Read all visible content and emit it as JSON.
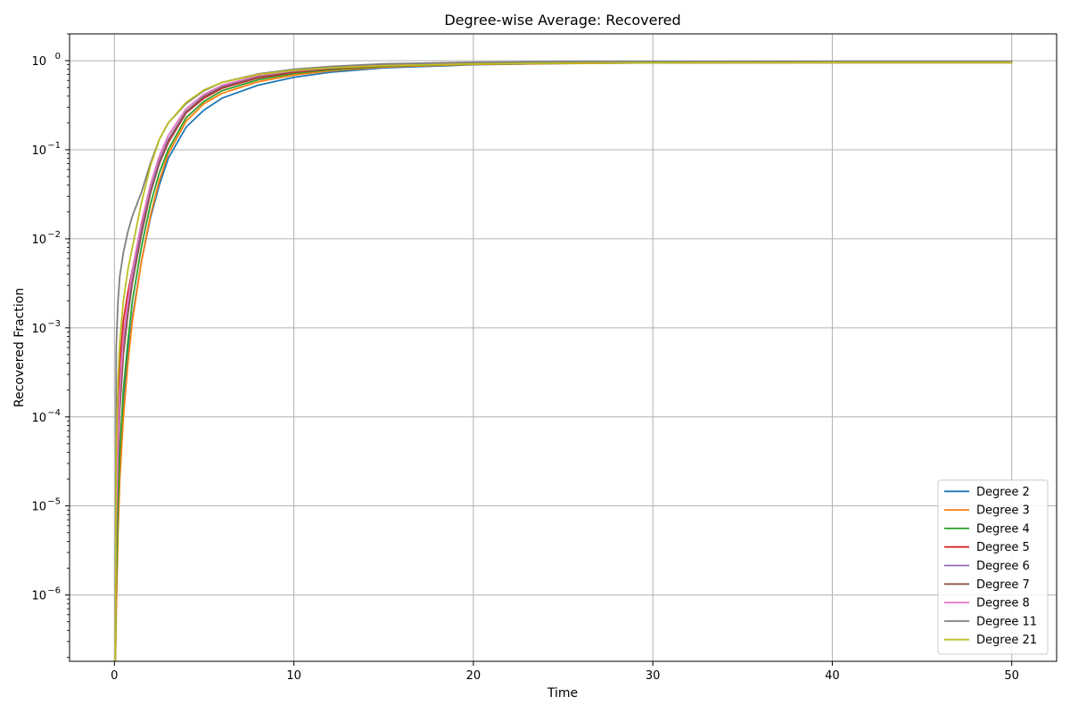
{
  "chart_data": {
    "type": "line",
    "title": "Degree-wise Average: Recovered",
    "xlabel": "Time",
    "ylabel": "Recovered Fraction",
    "xlim": [
      -2.5,
      52.5
    ],
    "ylim": [
      1.8e-07,
      2.0
    ],
    "yscale": "log",
    "grid": true,
    "legend_position": "lower right",
    "x_ticks": [
      {
        "value": 0,
        "label": "0"
      },
      {
        "value": 10,
        "label": "10"
      },
      {
        "value": 20,
        "label": "20"
      },
      {
        "value": 30,
        "label": "30"
      },
      {
        "value": 40,
        "label": "40"
      },
      {
        "value": 50,
        "label": "50"
      }
    ],
    "y_ticks": [
      {
        "value": 1e-06,
        "base": "10",
        "exp": "−6"
      },
      {
        "value": 1e-05,
        "base": "10",
        "exp": "−5"
      },
      {
        "value": 0.0001,
        "base": "10",
        "exp": "−4"
      },
      {
        "value": 0.001,
        "base": "10",
        "exp": "−3"
      },
      {
        "value": 0.01,
        "base": "10",
        "exp": "−2"
      },
      {
        "value": 0.1,
        "base": "10",
        "exp": "−1"
      },
      {
        "value": 1,
        "base": "10",
        "exp": "0"
      }
    ],
    "x": [
      0.05,
      0.1,
      0.2,
      0.3,
      0.5,
      0.75,
      1,
      1.5,
      2,
      2.5,
      3,
      4,
      5,
      6,
      8,
      10,
      12,
      15,
      20,
      25,
      30,
      40,
      50
    ],
    "series": [
      {
        "name": "Degree 2",
        "color": "#1f77b4",
        "values": [
          1.5e-07,
          1e-06,
          8e-06,
          3e-05,
          0.00015,
          0.0005,
          0.0013,
          0.0055,
          0.017,
          0.04,
          0.08,
          0.18,
          0.28,
          0.38,
          0.53,
          0.65,
          0.74,
          0.83,
          0.9,
          0.93,
          0.945,
          0.95,
          0.95
        ]
      },
      {
        "name": "Degree 3",
        "color": "#ff7f0e",
        "values": [
          1.5e-07,
          6e-07,
          5e-06,
          2e-05,
          0.0001,
          0.0004,
          0.0012,
          0.0055,
          0.018,
          0.045,
          0.09,
          0.21,
          0.33,
          0.43,
          0.58,
          0.69,
          0.77,
          0.85,
          0.91,
          0.93,
          0.945,
          0.95,
          0.95
        ]
      },
      {
        "name": "Degree 4",
        "color": "#2ca02c",
        "values": [
          1.5e-07,
          1.2e-06,
          1e-05,
          4e-05,
          0.0002,
          0.0007,
          0.002,
          0.008,
          0.024,
          0.055,
          0.1,
          0.23,
          0.35,
          0.46,
          0.61,
          0.72,
          0.79,
          0.87,
          0.92,
          0.94,
          0.95,
          0.955,
          0.955
        ]
      },
      {
        "name": "Degree 5",
        "color": "#d62728",
        "values": [
          1.5e-07,
          2e-05,
          0.00015,
          0.0004,
          0.0012,
          0.0025,
          0.0045,
          0.013,
          0.035,
          0.07,
          0.12,
          0.26,
          0.38,
          0.49,
          0.64,
          0.74,
          0.81,
          0.88,
          0.93,
          0.95,
          0.955,
          0.96,
          0.96
        ]
      },
      {
        "name": "Degree 6",
        "color": "#9467bd",
        "values": [
          1.5e-07,
          5e-06,
          4e-05,
          0.00015,
          0.0006,
          0.0016,
          0.0035,
          0.012,
          0.034,
          0.075,
          0.13,
          0.27,
          0.4,
          0.51,
          0.66,
          0.76,
          0.82,
          0.89,
          0.94,
          0.955,
          0.96,
          0.965,
          0.965
        ]
      },
      {
        "name": "Degree 7",
        "color": "#8c564b",
        "values": [
          1.5e-07,
          4e-06,
          3e-05,
          0.00012,
          0.0005,
          0.0014,
          0.0032,
          0.011,
          0.032,
          0.07,
          0.125,
          0.265,
          0.395,
          0.5,
          0.655,
          0.755,
          0.82,
          0.89,
          0.94,
          0.955,
          0.96,
          0.965,
          0.965
        ]
      },
      {
        "name": "Degree 8",
        "color": "#e377c2",
        "values": [
          1.5e-07,
          6e-06,
          5e-05,
          0.0002,
          0.0008,
          0.002,
          0.0045,
          0.015,
          0.04,
          0.085,
          0.145,
          0.29,
          0.42,
          0.53,
          0.68,
          0.77,
          0.83,
          0.9,
          0.945,
          0.96,
          0.965,
          0.97,
          0.97
        ]
      },
      {
        "name": "Degree 11",
        "color": "#7f7f7f",
        "values": [
          1.5e-07,
          0.0006,
          0.002,
          0.0038,
          0.007,
          0.012,
          0.018,
          0.033,
          0.07,
          0.13,
          0.2,
          0.33,
          0.46,
          0.57,
          0.71,
          0.8,
          0.86,
          0.92,
          0.96,
          0.975,
          0.98,
          0.985,
          0.985
        ]
      },
      {
        "name": "Degree 21",
        "color": "#bcbd22",
        "values": [
          1.5e-07,
          4e-05,
          0.00025,
          0.0007,
          0.002,
          0.0045,
          0.008,
          0.025,
          0.065,
          0.13,
          0.2,
          0.34,
          0.47,
          0.57,
          0.7,
          0.78,
          0.83,
          0.88,
          0.92,
          0.94,
          0.95,
          0.955,
          0.955
        ]
      }
    ]
  }
}
